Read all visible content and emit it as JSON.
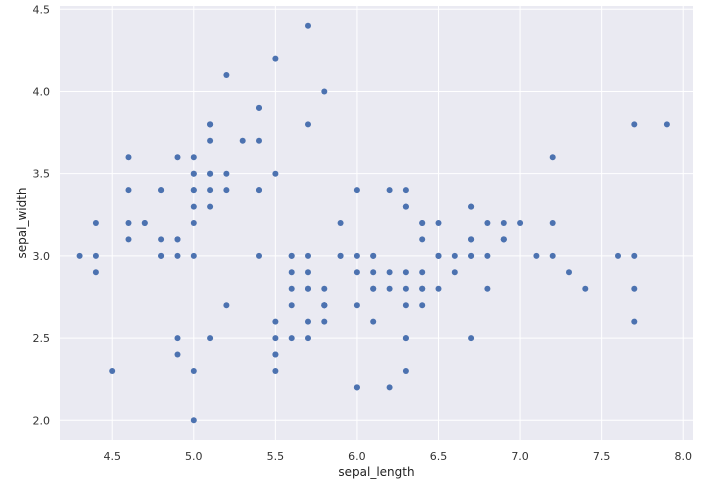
{
  "chart_data": {
    "type": "scatter",
    "title": "",
    "xlabel": "sepal_length",
    "ylabel": "sepal_width",
    "xlim": [
      4.18,
      8.06
    ],
    "ylim": [
      1.88,
      4.52
    ],
    "xticks": [
      4.5,
      5.0,
      5.5,
      6.0,
      6.5,
      7.0,
      7.5,
      8.0
    ],
    "xtick_labels": [
      "4.5",
      "5.0",
      "5.5",
      "6.0",
      "6.5",
      "7.0",
      "7.5",
      "8.0"
    ],
    "yticks": [
      2.0,
      2.5,
      3.0,
      3.5,
      4.0,
      4.5
    ],
    "ytick_labels": [
      "2.0",
      "2.5",
      "3.0",
      "3.5",
      "4.0",
      "4.5"
    ],
    "grid": true,
    "background_color": "#eaeaf2",
    "marker_color": "#4c72b0",
    "series": [
      {
        "points": [
          [
            5.1,
            3.5
          ],
          [
            4.9,
            3.0
          ],
          [
            4.7,
            3.2
          ],
          [
            4.6,
            3.1
          ],
          [
            5.0,
            3.6
          ],
          [
            5.4,
            3.9
          ],
          [
            4.6,
            3.4
          ],
          [
            5.0,
            3.4
          ],
          [
            4.4,
            2.9
          ],
          [
            4.9,
            3.1
          ],
          [
            5.4,
            3.7
          ],
          [
            4.8,
            3.4
          ],
          [
            4.8,
            3.0
          ],
          [
            4.3,
            3.0
          ],
          [
            5.8,
            4.0
          ],
          [
            5.7,
            4.4
          ],
          [
            5.4,
            3.9
          ],
          [
            5.1,
            3.5
          ],
          [
            5.7,
            3.8
          ],
          [
            5.1,
            3.8
          ],
          [
            5.4,
            3.4
          ],
          [
            5.1,
            3.7
          ],
          [
            4.6,
            3.6
          ],
          [
            5.1,
            3.3
          ],
          [
            4.8,
            3.4
          ],
          [
            5.0,
            3.0
          ],
          [
            5.0,
            3.4
          ],
          [
            5.2,
            3.5
          ],
          [
            5.2,
            3.4
          ],
          [
            4.7,
            3.2
          ],
          [
            4.8,
            3.1
          ],
          [
            5.4,
            3.4
          ],
          [
            5.2,
            4.1
          ],
          [
            5.5,
            4.2
          ],
          [
            4.9,
            3.1
          ],
          [
            5.0,
            3.2
          ],
          [
            5.5,
            3.5
          ],
          [
            4.9,
            3.6
          ],
          [
            4.4,
            3.0
          ],
          [
            5.1,
            3.4
          ],
          [
            5.0,
            3.5
          ],
          [
            4.5,
            2.3
          ],
          [
            4.4,
            3.2
          ],
          [
            5.0,
            3.5
          ],
          [
            5.1,
            3.8
          ],
          [
            4.8,
            3.0
          ],
          [
            5.1,
            3.8
          ],
          [
            4.6,
            3.2
          ],
          [
            5.3,
            3.7
          ],
          [
            5.0,
            3.3
          ],
          [
            7.0,
            3.2
          ],
          [
            6.4,
            3.2
          ],
          [
            6.9,
            3.1
          ],
          [
            5.5,
            2.3
          ],
          [
            6.5,
            2.8
          ],
          [
            5.7,
            2.8
          ],
          [
            6.3,
            3.3
          ],
          [
            4.9,
            2.4
          ],
          [
            6.6,
            2.9
          ],
          [
            5.2,
            2.7
          ],
          [
            5.0,
            2.0
          ],
          [
            5.9,
            3.0
          ],
          [
            6.0,
            2.2
          ],
          [
            6.1,
            2.9
          ],
          [
            5.6,
            2.9
          ],
          [
            6.7,
            3.1
          ],
          [
            5.6,
            3.0
          ],
          [
            5.8,
            2.7
          ],
          [
            6.2,
            2.2
          ],
          [
            5.6,
            2.5
          ],
          [
            5.9,
            3.2
          ],
          [
            6.1,
            2.8
          ],
          [
            6.3,
            2.5
          ],
          [
            6.1,
            2.8
          ],
          [
            6.4,
            2.9
          ],
          [
            6.6,
            3.0
          ],
          [
            6.8,
            2.8
          ],
          [
            6.7,
            3.0
          ],
          [
            6.0,
            2.9
          ],
          [
            5.7,
            2.6
          ],
          [
            5.5,
            2.4
          ],
          [
            5.5,
            2.4
          ],
          [
            5.8,
            2.7
          ],
          [
            6.0,
            2.7
          ],
          [
            5.4,
            3.0
          ],
          [
            6.0,
            3.4
          ],
          [
            6.7,
            3.1
          ],
          [
            6.3,
            2.3
          ],
          [
            5.6,
            3.0
          ],
          [
            5.5,
            2.5
          ],
          [
            5.5,
            2.6
          ],
          [
            6.1,
            3.0
          ],
          [
            5.8,
            2.6
          ],
          [
            5.0,
            2.3
          ],
          [
            5.6,
            2.7
          ],
          [
            5.7,
            3.0
          ],
          [
            5.7,
            2.9
          ],
          [
            6.2,
            2.9
          ],
          [
            5.1,
            2.5
          ],
          [
            5.7,
            2.8
          ],
          [
            6.3,
            3.3
          ],
          [
            5.8,
            2.7
          ],
          [
            7.1,
            3.0
          ],
          [
            6.3,
            2.9
          ],
          [
            6.5,
            3.0
          ],
          [
            7.6,
            3.0
          ],
          [
            4.9,
            2.5
          ],
          [
            7.3,
            2.9
          ],
          [
            6.7,
            2.5
          ],
          [
            7.2,
            3.6
          ],
          [
            6.5,
            3.2
          ],
          [
            6.4,
            2.7
          ],
          [
            6.8,
            3.0
          ],
          [
            5.7,
            2.5
          ],
          [
            5.8,
            2.8
          ],
          [
            6.4,
            3.2
          ],
          [
            6.5,
            3.0
          ],
          [
            7.7,
            3.8
          ],
          [
            7.7,
            2.6
          ],
          [
            6.0,
            2.2
          ],
          [
            6.9,
            3.2
          ],
          [
            5.6,
            2.8
          ],
          [
            7.7,
            2.8
          ],
          [
            6.3,
            2.7
          ],
          [
            6.7,
            3.3
          ],
          [
            7.2,
            3.2
          ],
          [
            6.2,
            2.8
          ],
          [
            6.1,
            3.0
          ],
          [
            6.4,
            2.8
          ],
          [
            7.2,
            3.0
          ],
          [
            7.4,
            2.8
          ],
          [
            7.9,
            3.8
          ],
          [
            6.4,
            2.8
          ],
          [
            6.3,
            2.8
          ],
          [
            6.1,
            2.6
          ],
          [
            7.7,
            3.0
          ],
          [
            6.3,
            3.4
          ],
          [
            6.4,
            3.1
          ],
          [
            6.0,
            3.0
          ],
          [
            6.9,
            3.1
          ],
          [
            6.7,
            3.1
          ],
          [
            6.9,
            3.1
          ],
          [
            5.8,
            2.7
          ],
          [
            6.8,
            3.2
          ],
          [
            6.7,
            3.3
          ],
          [
            6.7,
            3.0
          ],
          [
            6.3,
            2.5
          ],
          [
            6.5,
            3.0
          ],
          [
            6.2,
            3.4
          ],
          [
            5.9,
            3.0
          ]
        ]
      }
    ]
  }
}
